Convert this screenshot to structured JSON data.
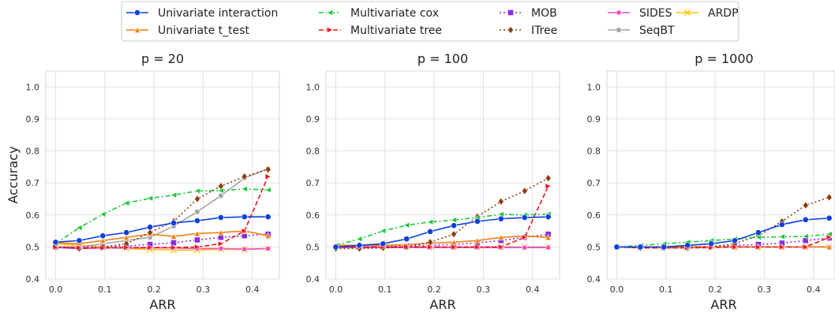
{
  "chart_data": {
    "type": "line",
    "ylabel": "Accuracy",
    "xlabel": "ARR",
    "xlim": [
      -0.02,
      0.455
    ],
    "ylim": [
      0.4,
      1.05
    ],
    "xticks": [
      "0.0",
      "0.1",
      "0.2",
      "0.3",
      "0.4"
    ],
    "yticks": [
      "0.4",
      "0.5",
      "0.6",
      "0.7",
      "0.8",
      "0.9",
      "1.0"
    ],
    "grid": true,
    "legend_position": "top-center",
    "x": [
      0.0,
      0.048,
      0.096,
      0.144,
      0.192,
      0.24,
      0.288,
      0.336,
      0.384,
      0.432
    ],
    "methods": [
      {
        "name": "Univariate interaction",
        "color": "#0b3fe0",
        "dash": "",
        "marker": "circle"
      },
      {
        "name": "Univariate t_test",
        "color": "#f07f12",
        "dash": "",
        "marker": "triangle"
      },
      {
        "name": "Multivariate cox",
        "color": "#1ec83a",
        "dash": "6,3,2,3",
        "marker": "tri-left"
      },
      {
        "name": "Multivariate tree",
        "color": "#e8141c",
        "dash": "6,3",
        "marker": "tri-right"
      },
      {
        "name": "MOB",
        "color": "#8b2be2",
        "dash": "2,3",
        "marker": "square"
      },
      {
        "name": "ITree",
        "color": "#8c3e0c",
        "dash": "2,3",
        "marker": "diamond"
      },
      {
        "name": "SIDES",
        "color": "#f14cc1",
        "dash": "",
        "marker": "pentagon"
      },
      {
        "name": "SeqBT",
        "color": "#a3a3a3",
        "dash": "",
        "marker": "hexagon"
      },
      {
        "name": "ARDP",
        "color": "#ffc400",
        "dash": "",
        "marker": "x"
      }
    ],
    "panels": [
      {
        "title": "p = 20",
        "series": [
          {
            "values": [
              0.515,
              0.52,
              0.535,
              0.545,
              0.562,
              0.575,
              0.582,
              0.592,
              0.594,
              0.594
            ]
          },
          {
            "values": [
              0.513,
              0.51,
              0.52,
              0.53,
              0.54,
              0.533,
              0.542,
              0.545,
              0.55,
              0.535
            ]
          },
          {
            "values": [
              0.51,
              0.56,
              0.602,
              0.637,
              0.652,
              0.662,
              0.675,
              0.676,
              0.681,
              0.678
            ]
          },
          {
            "values": [
              0.5,
              0.497,
              0.497,
              0.498,
              0.498,
              0.498,
              0.5,
              0.51,
              0.55,
              0.72
            ]
          },
          {
            "values": [
              0.5,
              0.5,
              0.5,
              0.503,
              0.508,
              0.513,
              0.522,
              0.53,
              0.535,
              0.54
            ]
          },
          {
            "values": [
              0.5,
              0.495,
              0.5,
              0.51,
              0.545,
              0.58,
              0.65,
              0.69,
              0.72,
              0.742
            ]
          },
          {
            "values": [
              0.498,
              0.495,
              0.497,
              0.497,
              0.497,
              0.497,
              0.495,
              0.495,
              0.493,
              0.495
            ]
          },
          {
            "values": [
              0.5,
              0.5,
              0.51,
              0.52,
              0.53,
              0.565,
              0.61,
              0.66,
              0.715,
              0.745
            ]
          },
          {
            "values": [
              0.51,
              0.505,
              0.5,
              0.495,
              0.492,
              0.49,
              0.49,
              0.493,
              0.492,
              0.495
            ]
          }
        ]
      },
      {
        "title": "p = 100",
        "series": [
          {
            "values": [
              0.5,
              0.505,
              0.51,
              0.525,
              0.548,
              0.567,
              0.58,
              0.588,
              0.592,
              0.594
            ]
          },
          {
            "values": [
              0.505,
              0.505,
              0.505,
              0.507,
              0.512,
              0.515,
              0.52,
              0.53,
              0.534,
              0.53
            ]
          },
          {
            "values": [
              0.505,
              0.525,
              0.55,
              0.568,
              0.578,
              0.584,
              0.592,
              0.602,
              0.6,
              0.603
            ]
          },
          {
            "values": [
              0.5,
              0.5,
              0.5,
              0.5,
              0.5,
              0.5,
              0.5,
              0.5,
              0.53,
              0.69
            ]
          },
          {
            "values": [
              0.5,
              0.5,
              0.502,
              0.503,
              0.505,
              0.508,
              0.513,
              0.52,
              0.53,
              0.54
            ]
          },
          {
            "values": [
              0.495,
              0.495,
              0.497,
              0.5,
              0.515,
              0.54,
              0.595,
              0.642,
              0.675,
              0.715
            ]
          },
          {
            "values": [
              0.498,
              0.498,
              0.498,
              0.498,
              0.498,
              0.498,
              0.498,
              0.498,
              0.498,
              0.498
            ]
          },
          {
            "values": [
              0.5,
              0.5,
              0.5,
              0.5,
              0.5,
              0.5,
              0.5,
              0.5,
              0.5,
              0.5
            ]
          },
          {
            "values": [
              0.5,
              0.5,
              0.5,
              0.5,
              0.5,
              0.5,
              0.5,
              0.5,
              0.5,
              0.5
            ]
          }
        ]
      },
      {
        "title": "p = 1000",
        "series": [
          {
            "values": [
              0.5,
              0.5,
              0.5,
              0.505,
              0.51,
              0.52,
              0.545,
              0.57,
              0.585,
              0.59
            ]
          },
          {
            "values": [
              0.5,
              0.5,
              0.5,
              0.5,
              0.5,
              0.5,
              0.5,
              0.5,
              0.5,
              0.5
            ]
          },
          {
            "values": [
              0.5,
              0.505,
              0.51,
              0.515,
              0.52,
              0.525,
              0.53,
              0.532,
              0.533,
              0.54
            ]
          },
          {
            "values": [
              0.5,
              0.497,
              0.497,
              0.497,
              0.498,
              0.5,
              0.5,
              0.5,
              0.5,
              0.53
            ]
          },
          {
            "values": [
              0.5,
              0.5,
              0.5,
              0.5,
              0.502,
              0.505,
              0.508,
              0.512,
              0.52,
              0.528
            ]
          },
          {
            "values": [
              0.5,
              0.497,
              0.497,
              0.497,
              0.5,
              0.51,
              0.535,
              0.58,
              0.63,
              0.655
            ]
          },
          {
            "values": [
              0.5,
              0.5,
              0.5,
              0.5,
              0.5,
              0.5,
              0.5,
              0.5,
              0.5,
              0.5
            ]
          },
          {
            "values": [
              0.5,
              0.5,
              0.5,
              0.5,
              0.5,
              0.5,
              0.5,
              0.5,
              0.5,
              0.5
            ]
          },
          {
            "values": [
              0.5,
              0.5,
              0.5,
              0.5,
              0.5,
              0.5,
              0.5,
              0.5,
              0.5,
              0.5
            ]
          }
        ]
      }
    ]
  }
}
